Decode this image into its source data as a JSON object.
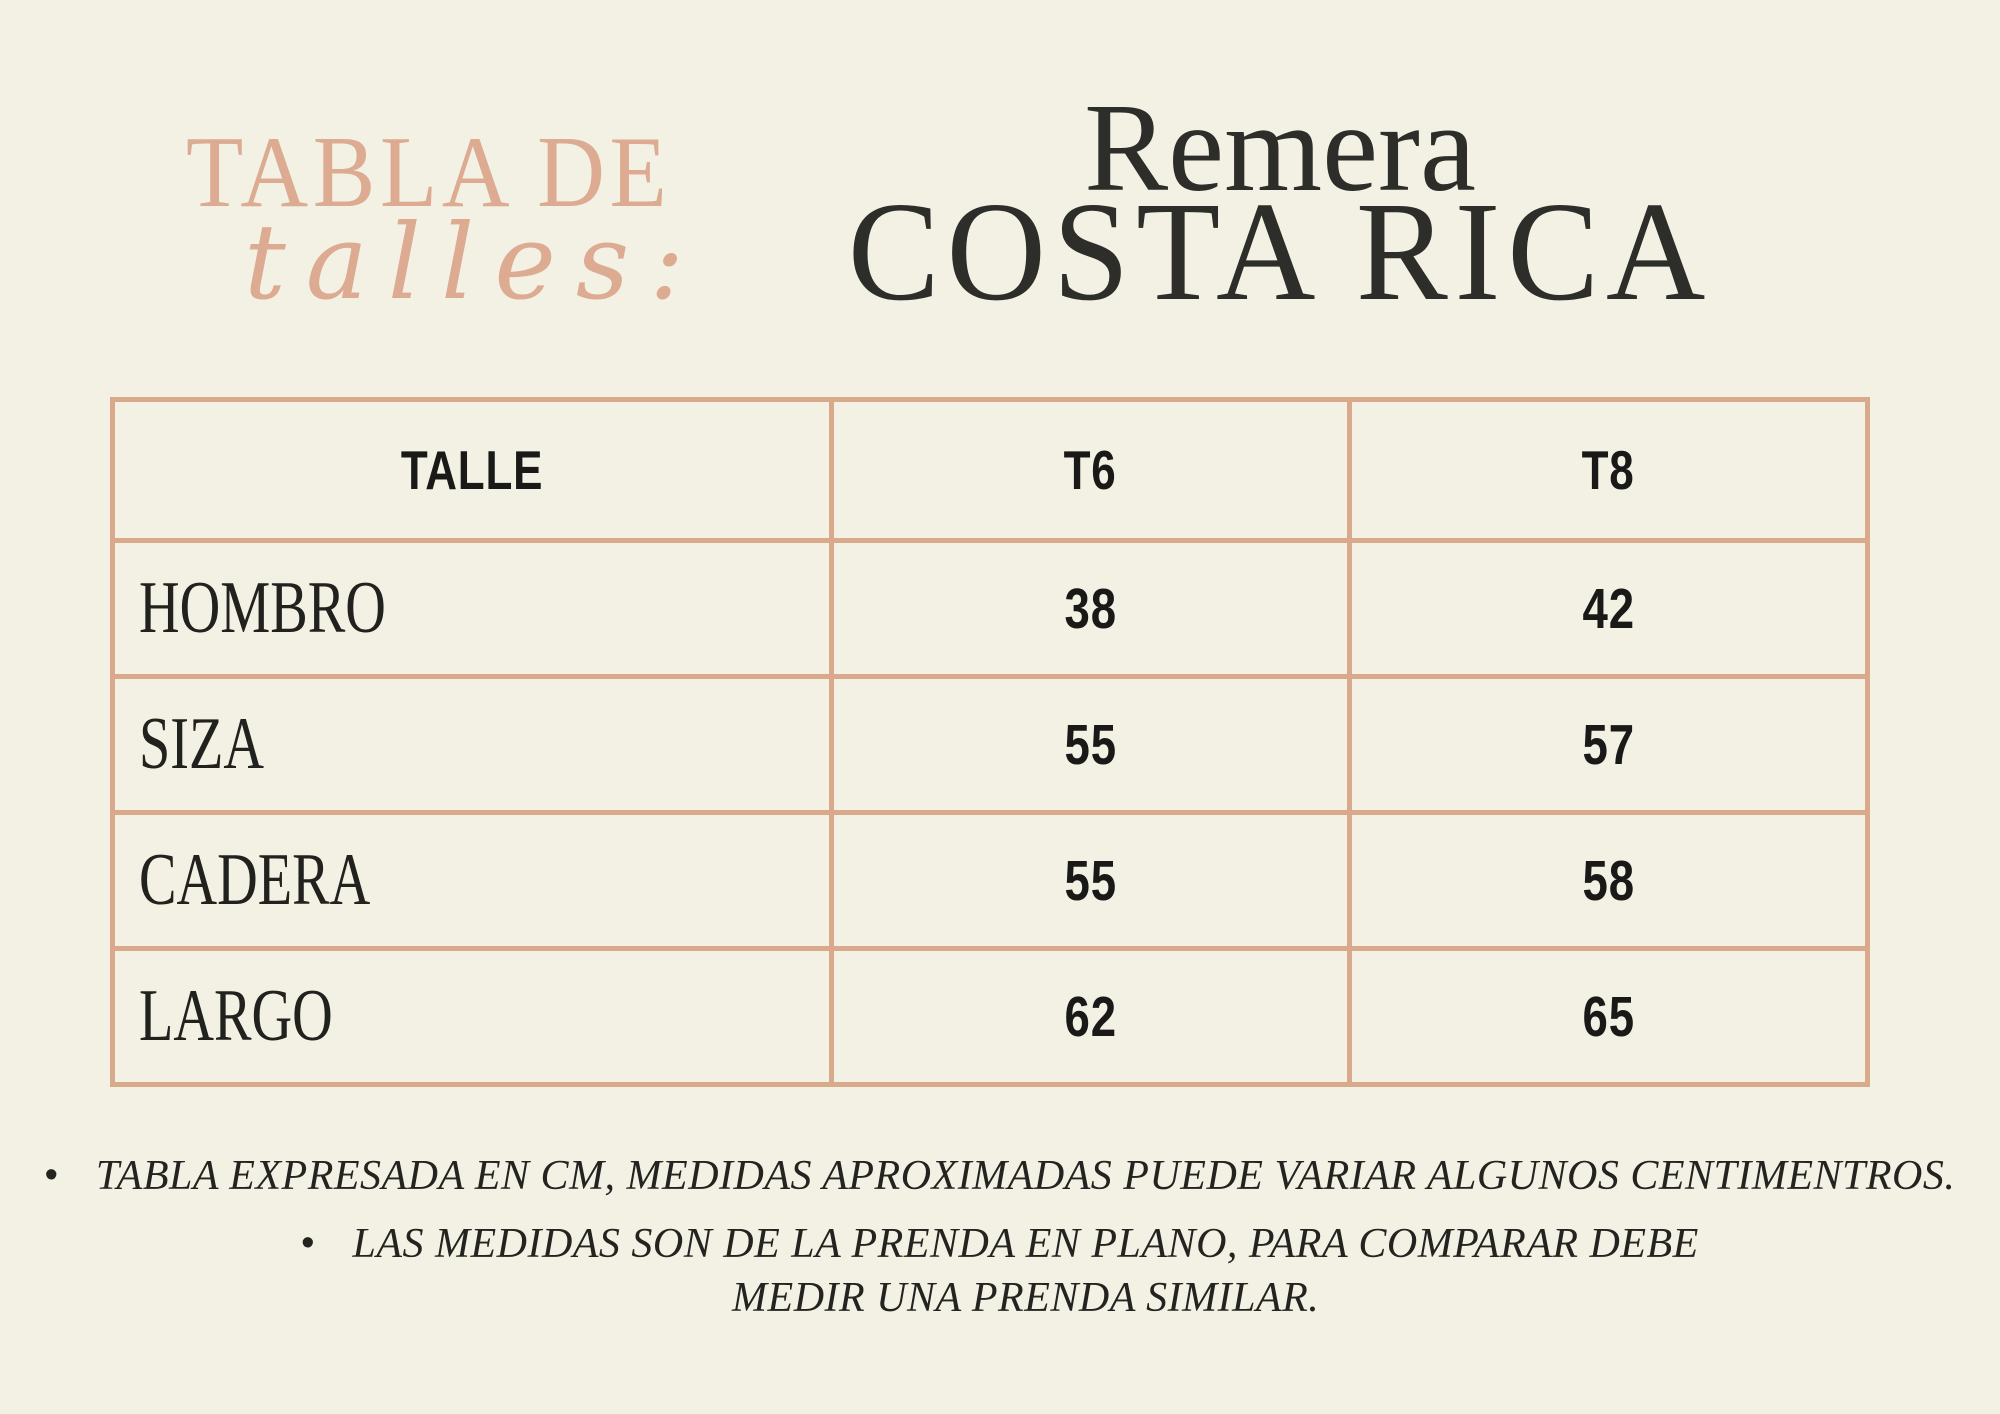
{
  "page": {
    "background_color": "#f3f0e4",
    "accent_color": "#d8a98b",
    "brand_text_color": "#dcab92",
    "title_text_color": "#2d2d29"
  },
  "header": {
    "eyebrow_line1": "TABLA DE",
    "eyebrow_line2": "talles:",
    "title_line1": "Remera",
    "title_line2": "COSTA RICA"
  },
  "table": {
    "columns": [
      "TALLE",
      "T6",
      "T8"
    ],
    "rows": [
      {
        "label": "HOMBRO",
        "t6": "38",
        "t8": "42"
      },
      {
        "label": "SIZA",
        "t6": "55",
        "t8": "57"
      },
      {
        "label": "CADERA",
        "t6": "55",
        "t8": "58"
      },
      {
        "label": "LARGO",
        "t6": "62",
        "t8": "65"
      }
    ]
  },
  "notes": [
    {
      "bullet": "•",
      "lines": [
        "TABLA EXPRESADA EN CM, MEDIDAS APROXIMADAS PUEDE VARIAR ALGUNOS CENTIMENTROS."
      ]
    },
    {
      "bullet": "•",
      "lines": [
        "LAS MEDIDAS SON DE LA PRENDA EN PLANO,  PARA COMPARAR DEBE",
        "MEDIR UNA PRENDA SIMILAR."
      ]
    }
  ]
}
